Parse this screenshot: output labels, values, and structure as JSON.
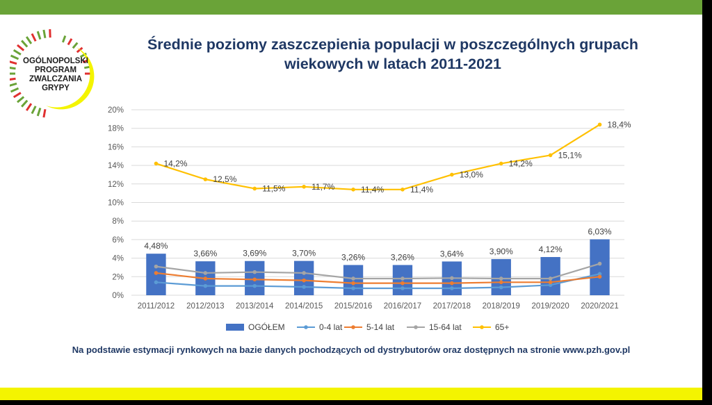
{
  "logo": {
    "lines": [
      "OGÓLNOPOLSKI",
      "PROGRAM",
      "ZWALCZANIA",
      "GRYPY"
    ]
  },
  "title": {
    "line1": "Średnie poziomy zaszczepienia populacji w poszczególnych grupach",
    "line2": "wiekowych w latach 2011-2021"
  },
  "footnote": "Na podstawie estymacji rynkowych na bazie danych pochodzących od dystrybutorów oraz dostępnych na stronie www.pzh.gov.pl",
  "colors": {
    "top_bar": "#6aa338",
    "bottom_bar": "#f4f400",
    "title": "#1f3864",
    "bar": "#4472c4",
    "line_0_4": "#5b9bd5",
    "line_5_14": "#ed7d31",
    "line_15_64": "#a5a5a5",
    "line_65": "#ffc000"
  },
  "chart_data": {
    "type": "bar",
    "categories": [
      "2011/2012",
      "2012/2013",
      "2013/2014",
      "2014/2015",
      "2015/2016",
      "2016/2017",
      "2017/2018",
      "2018/2019",
      "2019/2020",
      "2020/2021"
    ],
    "ylim": [
      0,
      20
    ],
    "yticks": [
      0,
      2,
      4,
      6,
      8,
      10,
      12,
      14,
      16,
      18,
      20
    ],
    "ytick_labels": [
      "0%",
      "2%",
      "4%",
      "6%",
      "8%",
      "10%",
      "12%",
      "14%",
      "16%",
      "18%",
      "20%"
    ],
    "grid": true,
    "legend_position": "bottom",
    "series": [
      {
        "name": "OGÓŁEM",
        "kind": "bar",
        "color": "#4472c4",
        "values": [
          4.48,
          3.66,
          3.69,
          3.7,
          3.26,
          3.26,
          3.64,
          3.9,
          4.12,
          6.03
        ],
        "labels": [
          "4,48%",
          "3,66%",
          "3,69%",
          "3,70%",
          "3,26%",
          "3,26%",
          "3,64%",
          "3,90%",
          "4,12%",
          "6,03%"
        ]
      },
      {
        "name": "0-4 lat",
        "kind": "line",
        "color": "#5b9bd5",
        "values": [
          1.4,
          1.0,
          1.0,
          0.9,
          0.75,
          0.75,
          0.75,
          0.85,
          1.1,
          2.3
        ]
      },
      {
        "name": "5-14 lat",
        "kind": "line",
        "color": "#ed7d31",
        "values": [
          2.4,
          1.8,
          1.7,
          1.6,
          1.3,
          1.3,
          1.3,
          1.4,
          1.4,
          2.0
        ]
      },
      {
        "name": "15-64 lat",
        "kind": "line",
        "color": "#a5a5a5",
        "values": [
          3.1,
          2.4,
          2.5,
          2.4,
          1.8,
          1.8,
          1.85,
          1.8,
          1.8,
          3.4
        ]
      },
      {
        "name": "65+",
        "kind": "line",
        "color": "#ffc000",
        "values": [
          14.2,
          12.5,
          11.5,
          11.7,
          11.4,
          11.4,
          13.0,
          14.2,
          15.1,
          18.4
        ],
        "labels": [
          "14,2%",
          "12,5%",
          "11,5%",
          "11,7%",
          "11,4%",
          "11,4%",
          "13,0%",
          "14,2%",
          "15,1%",
          "18,4%"
        ]
      }
    ]
  }
}
